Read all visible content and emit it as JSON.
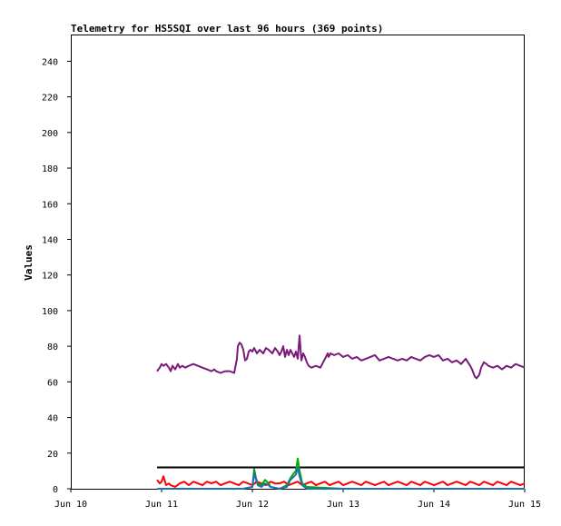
{
  "chart_data": {
    "type": "line",
    "title": "Telemetry for HS5SQI over last 96 hours (369 points)",
    "xlabel": "",
    "ylabel": "Values",
    "x_ticks": [
      "Jun 10",
      "Jun 11",
      "Jun 12",
      "Jun 13",
      "Jun 14",
      "Jun 15"
    ],
    "x_range_days": [
      10,
      15
    ],
    "ylim": [
      0,
      255
    ],
    "y_ticks": [
      0,
      20,
      40,
      60,
      80,
      100,
      120,
      140,
      160,
      180,
      200,
      220,
      240
    ],
    "grid": false,
    "series": [
      {
        "color": "#7a1a7a",
        "x": [
          10.95,
          10.98,
          11.0,
          11.02,
          11.05,
          11.08,
          11.1,
          11.12,
          11.15,
          11.18,
          11.2,
          11.23,
          11.26,
          11.3,
          11.35,
          11.4,
          11.45,
          11.5,
          11.55,
          11.58,
          11.6,
          11.65,
          11.7,
          11.75,
          11.8,
          11.83,
          11.84,
          11.86,
          11.88,
          11.9,
          11.92,
          11.94,
          11.96,
          11.98,
          12.0,
          12.02,
          12.03,
          12.05,
          12.08,
          12.1,
          12.12,
          12.15,
          12.18,
          12.2,
          12.22,
          12.25,
          12.28,
          12.3,
          12.32,
          12.34,
          12.36,
          12.38,
          12.4,
          12.42,
          12.44,
          12.46,
          12.48,
          12.5,
          12.52,
          12.54,
          12.56,
          12.58,
          12.6,
          12.62,
          12.65,
          12.7,
          12.75,
          12.8,
          12.83,
          12.84,
          12.86,
          12.9,
          12.95,
          13.0,
          13.05,
          13.1,
          13.15,
          13.2,
          13.25,
          13.3,
          13.35,
          13.4,
          13.45,
          13.5,
          13.55,
          13.6,
          13.65,
          13.7,
          13.75,
          13.8,
          13.85,
          13.9,
          13.95,
          14.0,
          14.05,
          14.1,
          14.15,
          14.2,
          14.25,
          14.3,
          14.35,
          14.4,
          14.42,
          14.45,
          14.47,
          14.5,
          14.52,
          14.55,
          14.58,
          14.6,
          14.65,
          14.7,
          14.75,
          14.8,
          14.85,
          14.9,
          14.95,
          15.0
        ],
        "values": [
          66,
          68,
          70,
          69,
          70,
          68,
          66,
          69,
          67,
          70,
          68,
          69,
          68,
          69,
          70,
          69,
          68,
          67,
          66,
          67,
          66,
          65,
          66,
          66,
          65,
          73,
          80,
          82,
          81,
          78,
          72,
          73,
          77,
          78,
          77,
          79,
          78,
          76,
          78,
          77,
          76,
          79,
          78,
          77,
          76,
          79,
          77,
          75,
          77,
          80,
          74,
          78,
          75,
          78,
          76,
          74,
          77,
          73,
          86,
          72,
          76,
          74,
          71,
          69,
          68,
          69,
          68,
          73,
          76,
          74,
          76,
          75,
          76,
          74,
          75,
          73,
          74,
          72,
          73,
          74,
          75,
          72,
          73,
          74,
          73,
          72,
          73,
          72,
          74,
          73,
          72,
          74,
          75,
          74,
          75,
          72,
          73,
          71,
          72,
          70,
          73,
          69,
          67,
          63,
          62,
          64,
          68,
          71,
          70,
          69,
          68,
          69,
          67,
          69,
          68,
          70,
          69,
          68
        ],
        "name": ""
      },
      {
        "color": "#000000",
        "x": [
          10.95,
          15.0
        ],
        "values": [
          12,
          12
        ],
        "name": ""
      },
      {
        "color": "#ff0000",
        "x": [
          10.95,
          10.98,
          11.0,
          11.02,
          11.05,
          11.08,
          11.1,
          11.15,
          11.2,
          11.25,
          11.3,
          11.35,
          11.4,
          11.45,
          11.5,
          11.55,
          11.6,
          11.65,
          11.7,
          11.75,
          11.8,
          11.85,
          11.9,
          11.95,
          12.0,
          12.05,
          12.1,
          12.15,
          12.2,
          12.25,
          12.3,
          12.35,
          12.4,
          12.45,
          12.5,
          12.55,
          12.6,
          12.65,
          12.7,
          12.75,
          12.8,
          12.85,
          12.9,
          12.95,
          13.0,
          13.05,
          13.1,
          13.15,
          13.2,
          13.25,
          13.3,
          13.35,
          13.4,
          13.45,
          13.5,
          13.55,
          13.6,
          13.65,
          13.7,
          13.75,
          13.8,
          13.85,
          13.9,
          13.95,
          14.0,
          14.05,
          14.1,
          14.15,
          14.2,
          14.25,
          14.3,
          14.35,
          14.4,
          14.45,
          14.5,
          14.55,
          14.6,
          14.65,
          14.7,
          14.75,
          14.8,
          14.85,
          14.9,
          14.95,
          15.0
        ],
        "values": [
          5,
          3,
          4,
          7,
          2,
          3,
          2,
          1,
          3,
          4,
          2,
          4,
          3,
          2,
          4,
          3,
          4,
          2,
          3,
          4,
          3,
          2,
          4,
          3,
          2,
          4,
          3,
          2,
          4,
          3,
          3,
          4,
          2,
          3,
          4,
          2,
          3,
          4,
          2,
          3,
          4,
          2,
          3,
          4,
          2,
          3,
          4,
          3,
          2,
          4,
          3,
          2,
          3,
          4,
          2,
          3,
          4,
          3,
          2,
          4,
          3,
          2,
          4,
          3,
          2,
          3,
          4,
          2,
          3,
          4,
          3,
          2,
          4,
          3,
          2,
          4,
          3,
          2,
          4,
          3,
          2,
          4,
          3,
          2,
          3
        ],
        "name": ""
      },
      {
        "color": "#00aa00",
        "x": [
          10.95,
          11.5,
          11.9,
          12.0,
          12.02,
          12.04,
          12.06,
          12.1,
          12.14,
          12.18,
          12.2,
          12.3,
          12.38,
          12.42,
          12.46,
          12.48,
          12.5,
          12.52,
          12.55,
          12.6,
          13.0,
          13.5,
          14.0,
          14.5,
          15.0
        ],
        "values": [
          0,
          0,
          0,
          1,
          11,
          6,
          3,
          2,
          5,
          3,
          1,
          0,
          2,
          6,
          9,
          10,
          17,
          10,
          3,
          1,
          0,
          0,
          0,
          0,
          0
        ],
        "name": ""
      },
      {
        "color": "#1e6fb4",
        "x": [
          10.95,
          11.5,
          11.9,
          12.0,
          12.02,
          12.04,
          12.06,
          12.1,
          12.14,
          12.18,
          12.2,
          12.3,
          12.38,
          12.42,
          12.46,
          12.48,
          12.5,
          12.52,
          12.55,
          12.6,
          13.0,
          13.5,
          14.0,
          14.5,
          15.0
        ],
        "values": [
          0,
          0,
          0,
          1,
          9,
          5,
          2,
          1,
          3,
          2,
          1,
          0,
          1,
          5,
          7,
          8,
          12,
          7,
          2,
          0,
          0,
          0,
          0,
          0,
          0
        ],
        "name": ""
      }
    ]
  }
}
